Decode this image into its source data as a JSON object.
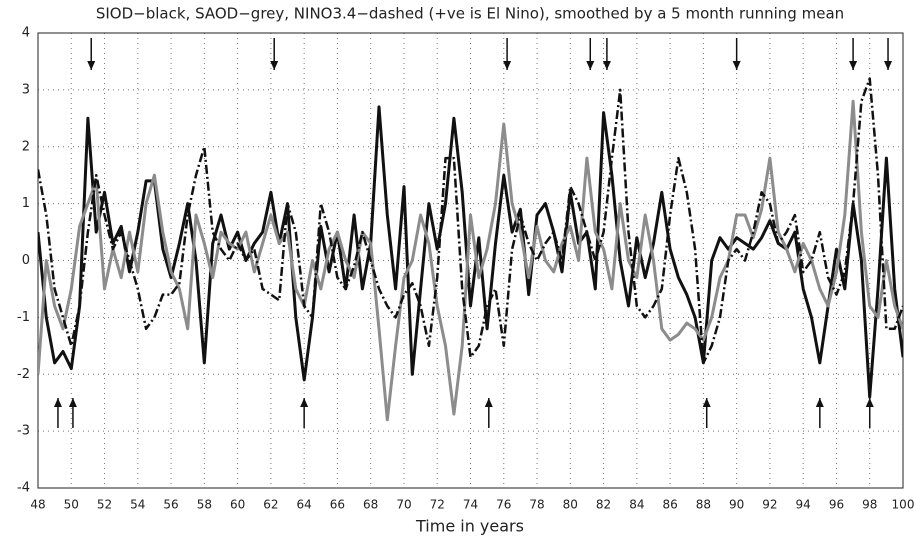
{
  "chart_data": {
    "type": "line",
    "title": "SIOD−black, SAOD−grey, NINO3.4−dashed (+ve is El Nino), smoothed by a 5 month running mean",
    "xlabel": "Time in years",
    "x": [
      48,
      48.5,
      49,
      49.5,
      50,
      50.5,
      51,
      51.5,
      52,
      52.5,
      53,
      53.5,
      54,
      54.5,
      55,
      55.5,
      56,
      56.5,
      57,
      57.5,
      58,
      58.5,
      59,
      59.5,
      60,
      60.5,
      61,
      61.5,
      62,
      62.5,
      63,
      63.5,
      64,
      64.5,
      65,
      65.5,
      66,
      66.5,
      67,
      67.5,
      68,
      68.5,
      69,
      69.5,
      70,
      70.5,
      71,
      71.5,
      72,
      72.5,
      73,
      73.5,
      74,
      74.5,
      75,
      75.5,
      76,
      76.5,
      77,
      77.5,
      78,
      78.5,
      79,
      79.5,
      80,
      80.5,
      81,
      81.5,
      82,
      82.5,
      83,
      83.5,
      84,
      84.5,
      85,
      85.5,
      86,
      86.5,
      87,
      87.5,
      88,
      88.5,
      89,
      89.5,
      90,
      90.5,
      91,
      91.5,
      92,
      92.5,
      93,
      93.5,
      94,
      94.5,
      95,
      95.5,
      96,
      96.5,
      97,
      97.5,
      98,
      98.5,
      99,
      99.5,
      100
    ],
    "series": [
      {
        "name": "SIOD",
        "color": "#111111",
        "dash": "none",
        "width": 3,
        "values": [
          0.5,
          -1.0,
          -1.8,
          -1.6,
          -1.9,
          -0.8,
          2.5,
          0.5,
          1.2,
          0.3,
          0.6,
          -0.2,
          0.5,
          1.4,
          1.4,
          0.2,
          -0.3,
          0.3,
          1.0,
          0.0,
          -1.8,
          0.3,
          0.8,
          0.2,
          0.5,
          0.0,
          0.3,
          0.5,
          1.2,
          0.3,
          1.0,
          -1.0,
          -2.1,
          -1.0,
          0.6,
          -0.2,
          0.5,
          -0.5,
          0.8,
          -0.5,
          0.3,
          2.7,
          0.8,
          -0.5,
          1.3,
          -2.0,
          -0.5,
          1.0,
          0.2,
          1.0,
          2.5,
          1.2,
          -0.8,
          0.4,
          -1.2,
          0.3,
          1.5,
          0.5,
          0.9,
          -0.6,
          0.8,
          1.0,
          0.5,
          -0.2,
          1.2,
          0.3,
          0.5,
          -0.5,
          2.6,
          1.5,
          0.0,
          -0.8,
          0.4,
          -0.3,
          0.3,
          1.2,
          0.2,
          -0.3,
          -0.6,
          -1.0,
          -1.8,
          0.0,
          0.4,
          0.2,
          0.4,
          0.3,
          0.2,
          0.4,
          0.7,
          0.3,
          0.2,
          0.5,
          -0.5,
          -1.0,
          -1.8,
          -0.8,
          0.2,
          -0.5,
          1.0,
          0.0,
          -2.4,
          -0.5,
          1.8,
          -0.5,
          -1.7
        ]
      },
      {
        "name": "SAOD",
        "color": "#8c8c8c",
        "dash": "none",
        "width": 3,
        "values": [
          -2.0,
          0.0,
          -0.8,
          -1.2,
          -0.5,
          0.6,
          1.0,
          1.4,
          -0.5,
          0.2,
          -0.3,
          0.5,
          -0.2,
          1.0,
          1.5,
          0.5,
          -0.2,
          -0.5,
          -1.2,
          0.8,
          0.3,
          -0.3,
          0.5,
          0.3,
          0.2,
          0.5,
          -0.2,
          0.3,
          0.8,
          0.3,
          0.5,
          -0.5,
          -0.8,
          0.0,
          -0.5,
          0.2,
          0.5,
          0.0,
          -0.3,
          0.5,
          0.3,
          -1.2,
          -2.8,
          -1.5,
          -0.3,
          0.0,
          0.8,
          0.3,
          -0.8,
          -1.5,
          -2.7,
          -1.5,
          0.8,
          -0.3,
          0.2,
          1.0,
          2.4,
          1.0,
          0.5,
          -0.3,
          0.6,
          0.0,
          -0.2,
          0.3,
          0.6,
          0.0,
          1.8,
          0.5,
          0.2,
          -0.5,
          1.0,
          0.0,
          -0.3,
          0.8,
          0.0,
          -1.2,
          -1.4,
          -1.3,
          -1.1,
          -1.2,
          -1.4,
          -1.0,
          -0.3,
          0.0,
          0.8,
          0.8,
          0.4,
          0.9,
          1.8,
          0.5,
          0.2,
          -0.2,
          0.3,
          0.0,
          -0.5,
          -0.8,
          -0.2,
          0.8,
          2.8,
          0.5,
          -0.8,
          -1.0,
          0.0,
          -0.8,
          -1.2
        ]
      },
      {
        "name": "NINO3.4",
        "color": "#111111",
        "dash": "9,3,2,3",
        "width": 2.5,
        "values": [
          1.6,
          0.8,
          -0.5,
          -1.0,
          -1.5,
          -0.8,
          0.5,
          1.5,
          0.8,
          0.2,
          0.5,
          0.0,
          -0.5,
          -1.2,
          -1.0,
          -0.6,
          -0.6,
          -0.4,
          0.8,
          1.5,
          2.0,
          0.5,
          0.2,
          0.0,
          0.3,
          0.0,
          0.2,
          -0.5,
          -0.6,
          -0.7,
          1.0,
          0.5,
          -0.8,
          -1.0,
          1.0,
          0.5,
          -0.3,
          -0.5,
          -0.1,
          0.5,
          0.0,
          -0.5,
          -0.8,
          -1.0,
          -0.6,
          -0.4,
          -0.8,
          -1.5,
          -0.3,
          1.8,
          1.8,
          -0.5,
          -1.7,
          -1.5,
          -0.8,
          -0.5,
          -1.5,
          0.2,
          0.8,
          0.3,
          0.0,
          0.3,
          0.5,
          0.0,
          1.3,
          1.0,
          0.5,
          0.0,
          0.5,
          1.8,
          3.0,
          0.5,
          -0.8,
          -1.0,
          -0.8,
          -0.5,
          0.8,
          1.8,
          1.2,
          0.2,
          -1.8,
          -1.5,
          -1.0,
          0.0,
          0.2,
          0.0,
          0.5,
          1.2,
          1.0,
          0.3,
          0.5,
          0.8,
          -0.2,
          0.0,
          0.5,
          -0.3,
          -0.6,
          -0.2,
          1.0,
          2.8,
          3.2,
          1.5,
          -1.2,
          -1.2,
          -0.8
        ]
      }
    ],
    "down_arrows": [
      51.2,
      62.2,
      76.2,
      81.2,
      82.2,
      90.0,
      97.0,
      99.1
    ],
    "up_arrows": [
      49.2,
      50.1,
      64.0,
      75.1,
      88.2,
      95.0,
      98.0
    ],
    "xlim": [
      48,
      100
    ],
    "xticks": [
      48,
      50,
      52,
      54,
      56,
      58,
      60,
      62,
      64,
      66,
      68,
      70,
      72,
      74,
      76,
      78,
      80,
      82,
      84,
      86,
      88,
      90,
      92,
      94,
      96,
      98,
      100
    ],
    "ylim": [
      -4,
      4
    ],
    "yticks": [
      -4,
      -3,
      -2,
      -1,
      0,
      1,
      2,
      3,
      4
    ],
    "grid": true
  }
}
